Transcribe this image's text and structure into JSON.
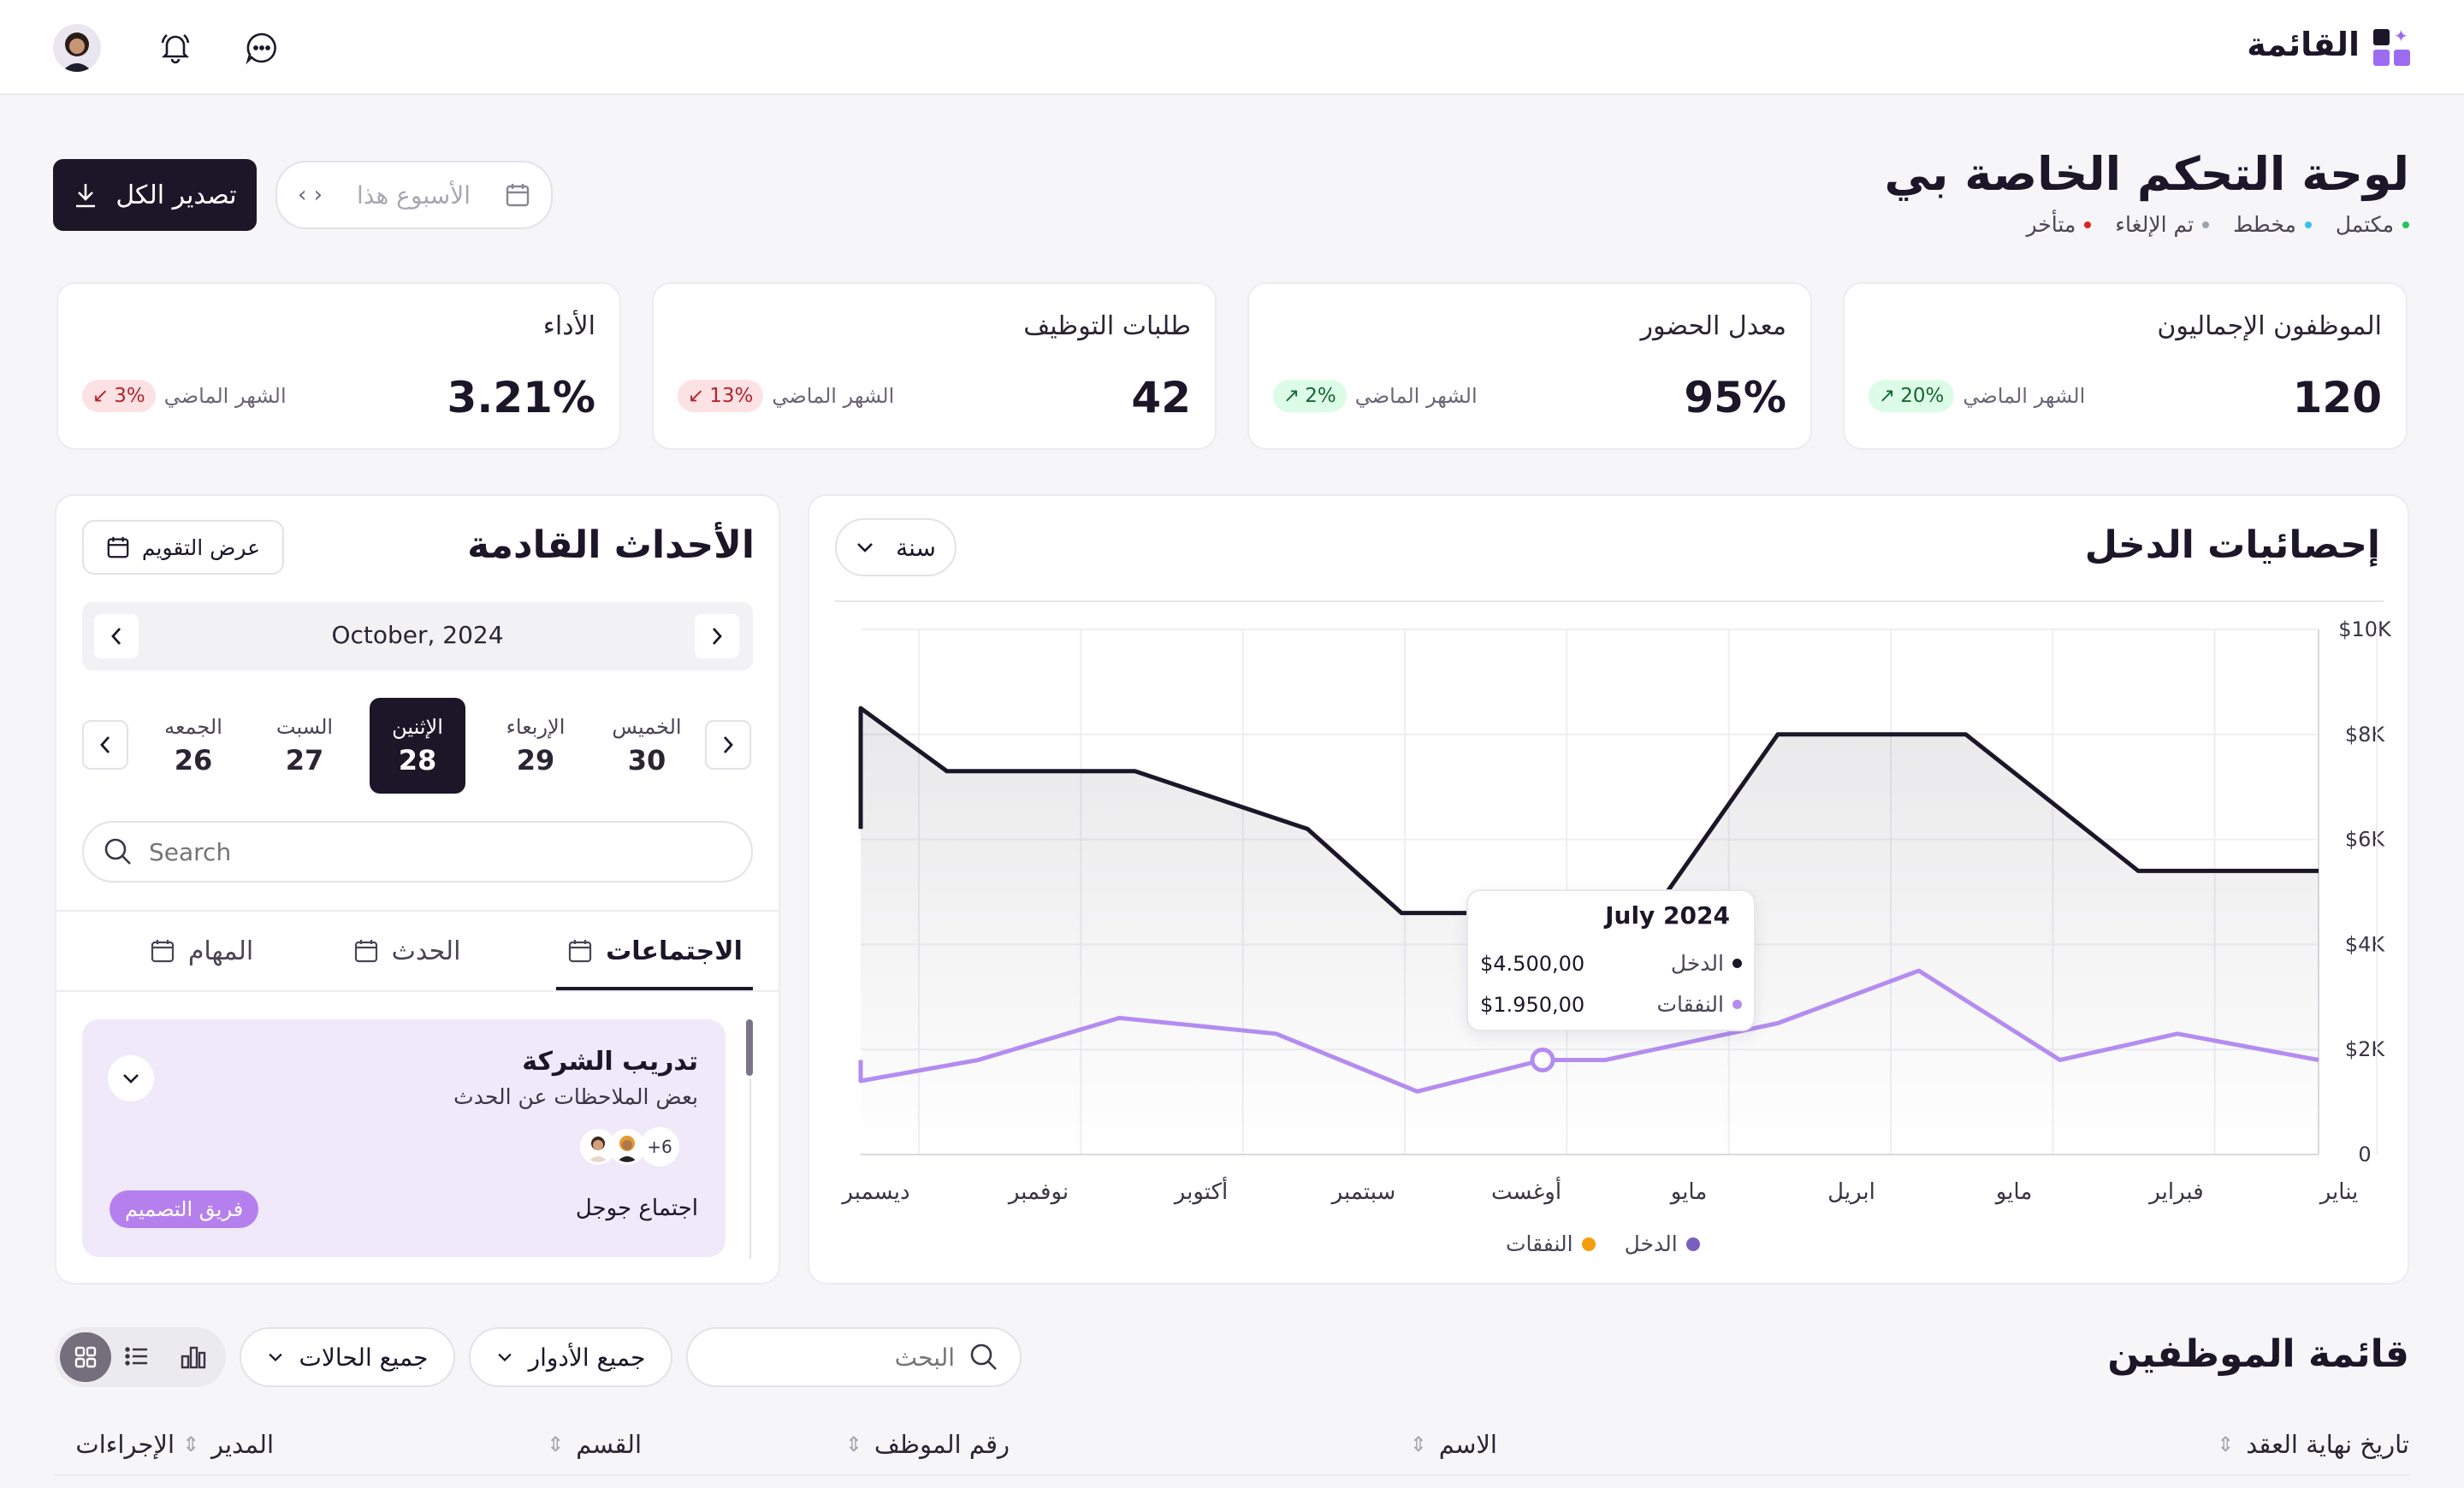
{
  "topbar": {
    "title": "القائمة"
  },
  "header": {
    "title": "لوحة التحكم الخاصة بي",
    "statuses": [
      {
        "label": "مكتمل",
        "color": "#22c55e"
      },
      {
        "label": "مخطط",
        "color": "#38bdf8"
      },
      {
        "label": "تم الإلغاء",
        "color": "#9ca3af"
      },
      {
        "label": "متأخر",
        "color": "#dc2626"
      }
    ],
    "date_range_placeholder": "الأسبوع هذا",
    "export_label": "تصدير الكل"
  },
  "stats": [
    {
      "title": "الموظفون الإجماليون",
      "value": "120",
      "change": "20%",
      "direction": "up",
      "period": "الشهر الماضي"
    },
    {
      "title": "معدل الحضور",
      "value": "95%",
      "change": "2%",
      "direction": "up",
      "period": "الشهر الماضي"
    },
    {
      "title": "طلبات التوظيف",
      "value": "42",
      "change": "13%",
      "direction": "down",
      "period": "الشهر الماضي"
    },
    {
      "title": "الأداء",
      "value": "3.21%",
      "change": "3%",
      "direction": "down",
      "period": "الشهر الماضي"
    }
  ],
  "income": {
    "title": "إحصائيات الدخل",
    "period_select": "سنة",
    "tooltip": {
      "title": "July 2024",
      "rows": [
        {
          "label": "الدخل",
          "value": "$4.500,00"
        },
        {
          "label": "النفقات",
          "value": "$1.950,00"
        }
      ]
    },
    "legend": [
      {
        "label": "الدخل",
        "color": "#7a5fc0"
      },
      {
        "label": "النفقات",
        "color": "#f59e0b"
      }
    ]
  },
  "chart_data": {
    "type": "line",
    "categories": [
      "يناير",
      "فبراير",
      "مايو",
      "ابريل",
      "مايو",
      "أوغست",
      "سبتمبر",
      "أكتوبر",
      "نوفمبر",
      "ديسمبر"
    ],
    "ylim": [
      0,
      10000
    ],
    "y_ticks": [
      "0",
      "$2K",
      "$4K",
      "$6K",
      "$8K",
      "$10K"
    ],
    "grid": true,
    "legend_position": "bottom",
    "series": [
      {
        "name": "الدخل",
        "color": "#1c1629",
        "x": [
          -0.15,
          1,
          2.1,
          3.3,
          4.1,
          5.7,
          6.3,
          7.4,
          8.6,
          9.8,
          10.15
        ],
        "values": [
          5400,
          5400,
          8000,
          8000,
          4600,
          4600,
          6200,
          7300,
          7300,
          8500,
          6200
        ]
      },
      {
        "name": "النفقات",
        "color": "#b48cf0",
        "x": [
          -0.15,
          0.75,
          1.5,
          2.4,
          3.3,
          4.4,
          4.8,
          5.6,
          6.5,
          7.5,
          8.4,
          9.5,
          10.15
        ],
        "values": [
          1800,
          2300,
          1800,
          3500,
          2500,
          1800,
          1800,
          1200,
          2300,
          2600,
          1800,
          1400,
          1800
        ]
      }
    ]
  },
  "events": {
    "title": "الأحداث القادمة",
    "calendar_button": "عرض التقويم",
    "month": "October, 2024",
    "days": [
      {
        "name": "الخميس",
        "num": "30"
      },
      {
        "name": "الإربعاء",
        "num": "29"
      },
      {
        "name": "الإثنين",
        "num": "28"
      },
      {
        "name": "السبت",
        "num": "27"
      },
      {
        "name": "الجمعه",
        "num": "26"
      }
    ],
    "search_placeholder": "Search",
    "tabs": [
      {
        "label": "الاجتماعات",
        "active": true
      },
      {
        "label": "الحدث",
        "active": false
      },
      {
        "label": "المهام",
        "active": false
      }
    ],
    "item": {
      "title": "تدريب الشركة",
      "subtitle": "بعض الملاحظات عن الحدث",
      "extra_count": "+6",
      "meeting": "اجتماع جوجل",
      "tag": "فريق التصميم"
    }
  },
  "employees": {
    "title": "قائمة الموظفين",
    "search_placeholder": "البحث",
    "roles_filter": "جميع الأدوار",
    "status_filter": "جميع الحالات",
    "columns": [
      "تاريخ نهاية العقد",
      "الاسم",
      "رقم الموظف",
      "القسم",
      "المدير",
      "الإجراءات"
    ]
  }
}
